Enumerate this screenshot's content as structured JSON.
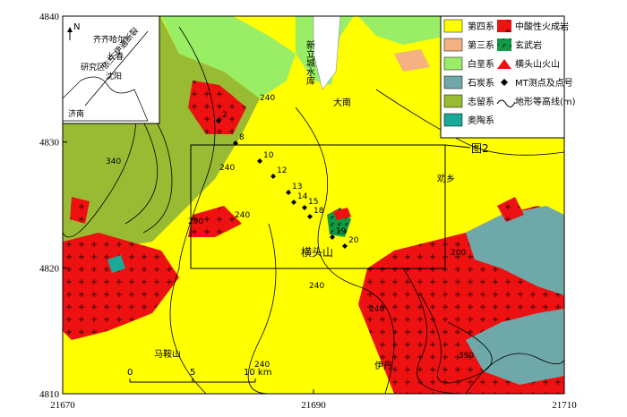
{
  "map": {
    "xlim": [
      21670,
      21710
    ],
    "ylim": [
      4810,
      4840
    ],
    "xticks": [
      21670,
      21690,
      21710
    ],
    "yticks": [
      4810,
      4820,
      4830,
      4840
    ],
    "legend": [
      "第四系",
      "第三系",
      "白垩系",
      "石炭系",
      "志留系",
      "奥陶系",
      "中酸性火成岩",
      "玄武岩",
      "横头山火山",
      "MT测点及点号",
      "地形等高线(m)"
    ],
    "places": [
      "新立城水库",
      "大南",
      "图2",
      "横头山",
      "马鞍山",
      "伊丹",
      "劝乡"
    ],
    "inset": [
      "N",
      "齐齐哈尔",
      "长春",
      "研究区",
      "沈阳",
      "济南",
      "依兰-伊通断裂"
    ],
    "scale": [
      "0",
      "5",
      "10 km"
    ],
    "mt_points": [
      2,
      8,
      10,
      12,
      13,
      14,
      15,
      18,
      19,
      20
    ],
    "contours": [
      340,
      290,
      240,
      240,
      240,
      240,
      240,
      240,
      200,
      390
    ]
  }
}
